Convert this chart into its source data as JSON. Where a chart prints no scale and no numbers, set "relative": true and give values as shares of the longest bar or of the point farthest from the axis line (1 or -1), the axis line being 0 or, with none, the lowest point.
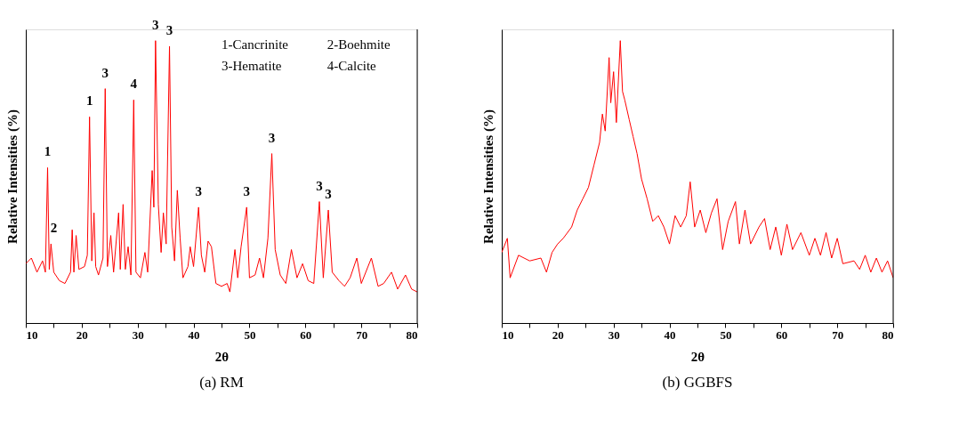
{
  "chart_data": [
    {
      "type": "line",
      "title": "(a) RM",
      "xlabel": "2θ",
      "ylabel": "Relative Intensities (%)",
      "relative": true,
      "xlim": [
        10,
        80
      ],
      "xticks": [
        10,
        {
          "value": 15,
          "label": null
        },
        20,
        {
          "value": 25,
          "label": null
        },
        30,
        {
          "value": 35,
          "label": null
        },
        40,
        {
          "value": 45,
          "label": null
        },
        50,
        {
          "value": 55,
          "label": null
        },
        60,
        {
          "value": 65,
          "label": null
        },
        70,
        {
          "value": 75,
          "label": null
        },
        80
      ],
      "x": [
        10.0,
        11,
        12,
        13,
        13.5,
        13.9,
        14.2,
        14.5,
        15,
        16,
        17,
        18,
        18.3,
        18.6,
        19,
        19.5,
        20.5,
        21,
        21.4,
        21.8,
        22.2,
        22.5,
        23,
        23.8,
        24.2,
        24.6,
        25.2,
        25.7,
        26.6,
        26.9,
        27.4,
        27.8,
        28.3,
        28.8,
        29.3,
        29.7,
        30.5,
        31.3,
        31.8,
        32.6,
        32.9,
        33.2,
        33.7,
        34.2,
        34.6,
        35.1,
        35.7,
        36.1,
        36.6,
        37.1,
        37.6,
        38.1,
        39,
        39.4,
        40,
        40.9,
        41.4,
        42,
        42.6,
        43.2,
        44,
        45,
        46,
        46.5,
        47.4,
        47.9,
        48.5,
        49.5,
        50,
        51,
        51.8,
        52.5,
        53.3,
        54.0,
        54.6,
        55.5,
        56.5,
        57.5,
        58.5,
        59.5,
        60.5,
        61.5,
        62.5,
        63.2,
        64.1,
        64.8,
        66,
        67,
        68,
        69.2,
        70,
        71.8,
        73,
        74,
        75.4,
        76.5,
        77.9,
        79,
        80
      ],
      "series": [
        {
          "color": "#ff0000",
          "values": [
            0.21,
            0.23,
            0.18,
            0.22,
            0.18,
            0.55,
            0.19,
            0.28,
            0.18,
            0.15,
            0.14,
            0.18,
            0.33,
            0.18,
            0.31,
            0.19,
            0.2,
            0.24,
            0.73,
            0.22,
            0.39,
            0.2,
            0.17,
            0.23,
            0.83,
            0.2,
            0.31,
            0.18,
            0.39,
            0.19,
            0.42,
            0.19,
            0.27,
            0.17,
            0.79,
            0.18,
            0.16,
            0.25,
            0.18,
            0.54,
            0.41,
            1.0,
            0.42,
            0.25,
            0.39,
            0.28,
            0.98,
            0.34,
            0.22,
            0.47,
            0.3,
            0.16,
            0.2,
            0.27,
            0.2,
            0.41,
            0.24,
            0.18,
            0.29,
            0.27,
            0.14,
            0.13,
            0.14,
            0.11,
            0.26,
            0.16,
            0.27,
            0.41,
            0.16,
            0.17,
            0.23,
            0.16,
            0.3,
            0.6,
            0.26,
            0.17,
            0.14,
            0.26,
            0.16,
            0.21,
            0.15,
            0.14,
            0.43,
            0.16,
            0.4,
            0.18,
            0.15,
            0.13,
            0.16,
            0.23,
            0.14,
            0.23,
            0.13,
            0.14,
            0.18,
            0.12,
            0.17,
            0.12,
            0.11
          ]
        }
      ],
      "annotations": [
        {
          "text": "1",
          "x": 13.9,
          "y": 0.55
        },
        {
          "text": "2",
          "x": 15,
          "y": 0.28
        },
        {
          "text": "1",
          "x": 21.4,
          "y": 0.73
        },
        {
          "text": "3",
          "x": 24.2,
          "y": 0.83
        },
        {
          "text": "4",
          "x": 29.3,
          "y": 0.79
        },
        {
          "text": "3",
          "x": 33.2,
          "y": 1.0
        },
        {
          "text": "3",
          "x": 35.7,
          "y": 0.98
        },
        {
          "text": "3",
          "x": 40.9,
          "y": 0.41
        },
        {
          "text": "3",
          "x": 49.5,
          "y": 0.41
        },
        {
          "text": "3",
          "x": 54.0,
          "y": 0.6
        },
        {
          "text": "3",
          "x": 62.5,
          "y": 0.43
        },
        {
          "text": "3",
          "x": 64.1,
          "y": 0.4
        },
        "1-Cancrinite",
        "2-Boehmite",
        "3-Hematite",
        "4-Calcite"
      ]
    },
    {
      "type": "line",
      "title": "(b) GGBFS",
      "xlabel": "2θ",
      "ylabel": "Relative Intensities (%)",
      "relative": true,
      "xlim": [
        10,
        80
      ],
      "xticks": [
        10,
        {
          "value": 15,
          "label": null
        },
        20,
        {
          "value": 25,
          "label": null
        },
        30,
        {
          "value": 35,
          "label": null
        },
        40,
        {
          "value": 45,
          "label": null
        },
        50,
        {
          "value": 55,
          "label": null
        },
        60,
        {
          "value": 65,
          "label": null
        },
        70,
        {
          "value": 75,
          "label": null
        },
        80
      ],
      "x": [
        10,
        11,
        11.5,
        13,
        15,
        17,
        18,
        19,
        20,
        21,
        22.5,
        23.5,
        24.5,
        25.5,
        26.5,
        27.5,
        28,
        28.5,
        29.2,
        29.5,
        30,
        30.5,
        31.2,
        31.6,
        32,
        32.8,
        33.5,
        34.2,
        35,
        36,
        37,
        38,
        39,
        40,
        41,
        42,
        43,
        43.7,
        44.5,
        45.5,
        46.5,
        47.5,
        48.5,
        49.5,
        50.5,
        51.8,
        52.5,
        53.5,
        54.5,
        56,
        57,
        58,
        59,
        60,
        61,
        62,
        63.5,
        65,
        66,
        67,
        68,
        69,
        70,
        71,
        73,
        74,
        75,
        76,
        77,
        78,
        79,
        80
      ],
      "series": [
        {
          "color": "#ff0000",
          "values": [
            0.25,
            0.3,
            0.16,
            0.24,
            0.22,
            0.23,
            0.18,
            0.25,
            0.28,
            0.3,
            0.34,
            0.4,
            0.44,
            0.48,
            0.56,
            0.64,
            0.74,
            0.68,
            0.94,
            0.78,
            0.89,
            0.71,
            1.0,
            0.82,
            0.79,
            0.72,
            0.66,
            0.6,
            0.51,
            0.44,
            0.36,
            0.38,
            0.34,
            0.28,
            0.38,
            0.34,
            0.38,
            0.5,
            0.34,
            0.4,
            0.32,
            0.39,
            0.44,
            0.26,
            0.36,
            0.43,
            0.28,
            0.4,
            0.28,
            0.34,
            0.37,
            0.26,
            0.34,
            0.24,
            0.35,
            0.26,
            0.32,
            0.24,
            0.3,
            0.24,
            0.32,
            0.23,
            0.3,
            0.21,
            0.22,
            0.19,
            0.24,
            0.18,
            0.23,
            0.18,
            0.22,
            0.16
          ]
        }
      ]
    }
  ]
}
